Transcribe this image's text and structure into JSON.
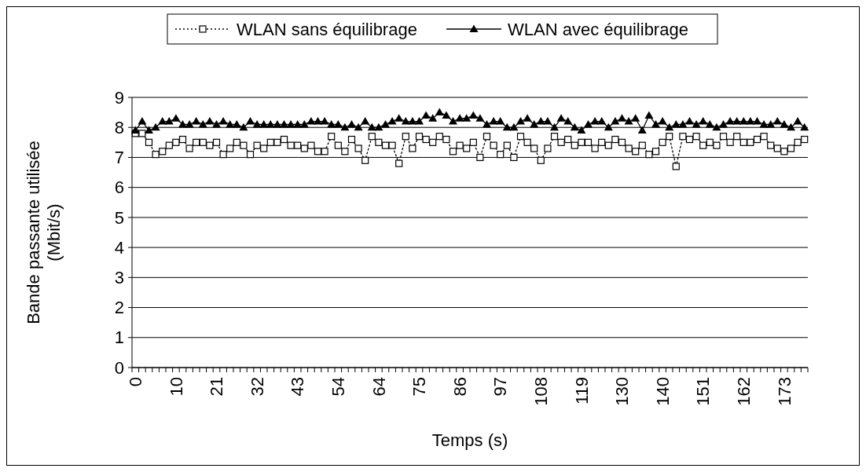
{
  "chart_data": {
    "type": "line",
    "xlabel": "Temps (s)",
    "ylabel": "Bande passante utilisée (Mbit/s)",
    "categories": [
      "0",
      null,
      null,
      null,
      null,
      null,
      "10",
      null,
      null,
      null,
      null,
      null,
      "21",
      null,
      null,
      null,
      null,
      null,
      "32",
      null,
      null,
      null,
      null,
      null,
      "43",
      null,
      null,
      null,
      null,
      null,
      "54",
      null,
      null,
      null,
      null,
      null,
      "64",
      null,
      null,
      null,
      null,
      null,
      "75",
      null,
      null,
      null,
      null,
      null,
      "86",
      null,
      null,
      null,
      null,
      null,
      "97",
      null,
      null,
      null,
      null,
      null,
      "108",
      null,
      null,
      null,
      null,
      null,
      "119",
      null,
      null,
      null,
      null,
      null,
      "130",
      null,
      null,
      null,
      null,
      null,
      "140",
      null,
      null,
      null,
      null,
      null,
      "151",
      null,
      null,
      null,
      null,
      null,
      "162",
      null,
      null,
      null,
      null,
      null,
      "173",
      null,
      null,
      null
    ],
    "series": [
      {
        "name": "WLAN sans équilibrage",
        "color": "#000000",
        "marker": "square",
        "line_style": "dotted",
        "values": [
          7.8,
          7.8,
          7.5,
          7.1,
          7.2,
          7.4,
          7.5,
          7.6,
          7.3,
          7.5,
          7.5,
          7.4,
          7.5,
          7.1,
          7.3,
          7.5,
          7.4,
          7.1,
          7.4,
          7.3,
          7.5,
          7.5,
          7.6,
          7.4,
          7.4,
          7.3,
          7.4,
          7.2,
          7.2,
          7.7,
          7.4,
          7.2,
          7.6,
          7.3,
          6.9,
          7.7,
          7.5,
          7.4,
          7.4,
          6.8,
          7.7,
          7.3,
          7.7,
          7.6,
          7.5,
          7.7,
          7.6,
          7.2,
          7.4,
          7.3,
          7.5,
          7.0,
          7.7,
          7.4,
          7.1,
          7.4,
          7.0,
          7.7,
          7.5,
          7.3,
          6.9,
          7.3,
          7.7,
          7.5,
          7.6,
          7.4,
          7.5,
          7.5,
          7.3,
          7.5,
          7.4,
          7.6,
          7.5,
          7.3,
          7.2,
          7.4,
          7.1,
          7.2,
          7.5,
          7.7,
          6.7,
          7.7,
          7.6,
          7.7,
          7.4,
          7.5,
          7.4,
          7.7,
          7.5,
          7.7,
          7.5,
          7.5,
          7.6,
          7.7,
          7.4,
          7.3,
          7.2,
          7.3,
          7.5,
          7.6
        ]
      },
      {
        "name": "WLAN avec équilibrage",
        "color": "#000000",
        "marker": "triangle",
        "line_style": "solid",
        "values": [
          7.9,
          8.2,
          7.9,
          8.0,
          8.2,
          8.2,
          8.3,
          8.1,
          8.1,
          8.2,
          8.1,
          8.2,
          8.1,
          8.2,
          8.1,
          8.1,
          8.0,
          8.2,
          8.1,
          8.1,
          8.1,
          8.1,
          8.1,
          8.1,
          8.1,
          8.1,
          8.2,
          8.2,
          8.2,
          8.1,
          8.1,
          8.0,
          8.1,
          8.0,
          8.2,
          8.0,
          8.0,
          8.1,
          8.2,
          8.3,
          8.2,
          8.2,
          8.2,
          8.4,
          8.3,
          8.5,
          8.4,
          8.2,
          8.3,
          8.3,
          8.4,
          8.3,
          8.1,
          8.2,
          8.2,
          8.0,
          8.0,
          8.2,
          8.3,
          8.1,
          8.2,
          8.2,
          8.0,
          8.3,
          8.2,
          8.0,
          7.9,
          8.1,
          8.2,
          8.2,
          8.0,
          8.2,
          8.3,
          8.2,
          8.3,
          7.9,
          8.4,
          8.1,
          8.2,
          8.0,
          8.1,
          8.1,
          8.2,
          8.1,
          8.2,
          8.1,
          8.0,
          8.1,
          8.2,
          8.2,
          8.2,
          8.2,
          8.2,
          8.1,
          8.1,
          8.2,
          8.1,
          8.0,
          8.2,
          8.0
        ]
      }
    ],
    "ylim": [
      0,
      9
    ],
    "yticks": [
      0,
      1,
      2,
      3,
      4,
      5,
      6,
      7,
      8,
      9
    ],
    "grid": "y",
    "legend": "top"
  }
}
